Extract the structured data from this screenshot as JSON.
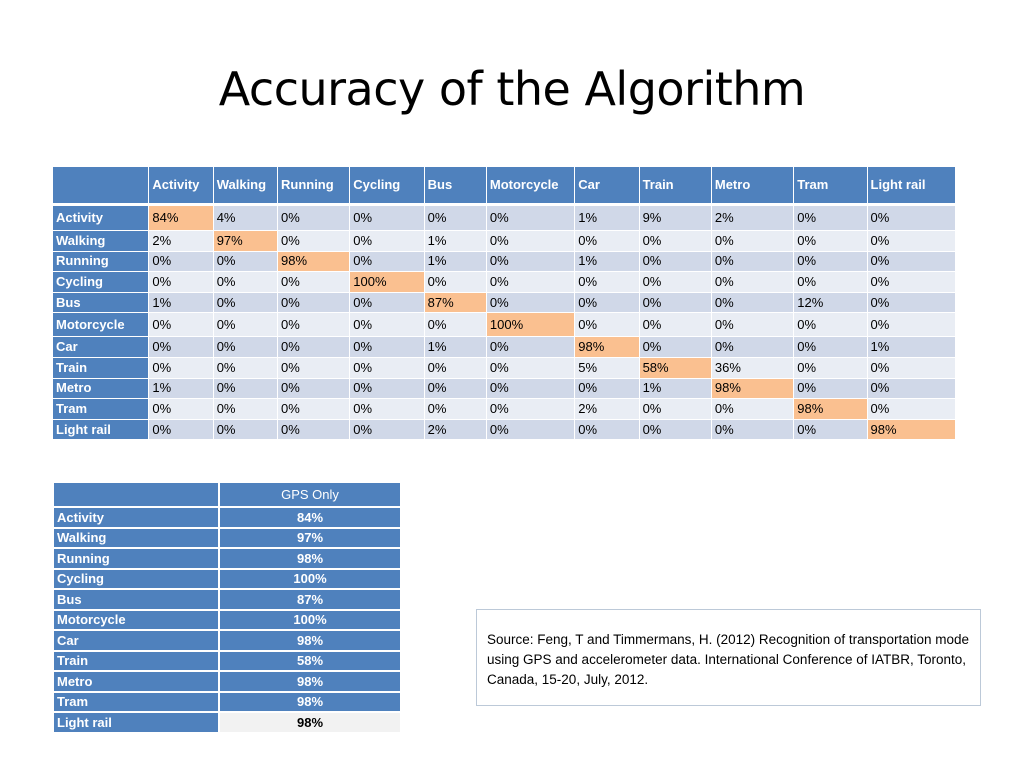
{
  "slide": {
    "title": "Accuracy of the Algorithm"
  },
  "matrix": {
    "columns": [
      "Activity",
      "Walking",
      "Running",
      "Cycling",
      "Bus",
      "Motorcycle",
      "Car",
      "Train",
      "Metro",
      "Tram",
      "Light rail"
    ],
    "rows": [
      {
        "label": "Activity",
        "values": [
          "84%",
          "4%",
          "0%",
          "0%",
          "0%",
          "0%",
          "1%",
          "9%",
          "2%",
          "0%",
          "0%"
        ]
      },
      {
        "label": "Walking",
        "values": [
          "2%",
          "97%",
          "0%",
          "0%",
          "1%",
          "0%",
          "0%",
          "0%",
          "0%",
          "0%",
          "0%"
        ]
      },
      {
        "label": "Running",
        "values": [
          "0%",
          "0%",
          "98%",
          "0%",
          "1%",
          "0%",
          "1%",
          "0%",
          "0%",
          "0%",
          "0%"
        ]
      },
      {
        "label": "Cycling",
        "values": [
          "0%",
          "0%",
          "0%",
          "100%",
          "0%",
          "0%",
          "0%",
          "0%",
          "0%",
          "0%",
          "0%"
        ]
      },
      {
        "label": "Bus",
        "values": [
          "1%",
          "0%",
          "0%",
          "0%",
          "87%",
          "0%",
          "0%",
          "0%",
          "0%",
          "12%",
          "0%"
        ]
      },
      {
        "label": "Motorcycle",
        "values": [
          "0%",
          "0%",
          "0%",
          "0%",
          "0%",
          "100%",
          "0%",
          "0%",
          "0%",
          "0%",
          "0%"
        ]
      },
      {
        "label": "Car",
        "values": [
          "0%",
          "0%",
          "0%",
          "0%",
          "1%",
          "0%",
          "98%",
          "0%",
          "0%",
          "0%",
          "1%"
        ]
      },
      {
        "label": "Train",
        "values": [
          "0%",
          "0%",
          "0%",
          "0%",
          "0%",
          "0%",
          "5%",
          "58%",
          "36%",
          "0%",
          "0%"
        ]
      },
      {
        "label": "Metro",
        "values": [
          "1%",
          "0%",
          "0%",
          "0%",
          "0%",
          "0%",
          "0%",
          "1%",
          "98%",
          "0%",
          "0%"
        ]
      },
      {
        "label": "Tram",
        "values": [
          "0%",
          "0%",
          "0%",
          "0%",
          "0%",
          "0%",
          "2%",
          "0%",
          "0%",
          "98%",
          "0%"
        ]
      },
      {
        "label": "Light rail",
        "values": [
          "0%",
          "0%",
          "0%",
          "0%",
          "2%",
          "0%",
          "0%",
          "0%",
          "0%",
          "0%",
          "98%"
        ]
      }
    ]
  },
  "gps_table": {
    "header": "GPS Only",
    "rows": [
      {
        "label": "Activity",
        "value": "84%"
      },
      {
        "label": "Walking",
        "value": "97%"
      },
      {
        "label": "Running",
        "value": "98%"
      },
      {
        "label": "Cycling",
        "value": "100%"
      },
      {
        "label": "Bus",
        "value": "87%"
      },
      {
        "label": "Motorcycle",
        "value": "100%"
      },
      {
        "label": "Car",
        "value": "98%"
      },
      {
        "label": "Train",
        "value": "58%"
      },
      {
        "label": "Metro",
        "value": "98%"
      },
      {
        "label": "Tram",
        "value": "98%"
      },
      {
        "label": "Light rail",
        "value": "98%"
      }
    ]
  },
  "source": {
    "text": "Source: Feng, T and Timmermans, H. (2012) Recognition of transportation mode using GPS and accelerometer data. International Conference of IATBR, Toronto, Canada, 15-20, July, 2012."
  },
  "colors": {
    "header_blue": "#4f81bd",
    "row_band_dark": "#d0d8e8",
    "row_band_light": "#e9edf4",
    "diagonal_highlight": "#fac090"
  }
}
